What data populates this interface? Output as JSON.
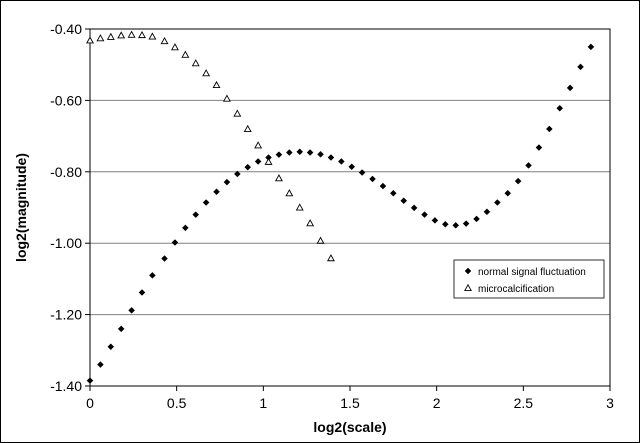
{
  "chart_data": {
    "type": "scatter",
    "xlabel": "log2(scale)",
    "ylabel": "log2(magnitude)",
    "xlim": [
      0,
      3
    ],
    "ylim": [
      -1.4,
      -0.4
    ],
    "x_ticks": [
      "0",
      "0.5",
      "1",
      "1.5",
      "2",
      "2.5",
      "3"
    ],
    "y_ticks": [
      "-0.40",
      "-0.60",
      "-0.80",
      "-1.00",
      "-1.20",
      "-1.40"
    ],
    "grid": "horizontal",
    "legend_position": "right",
    "series": [
      {
        "name": "normal signal fluctuation",
        "marker": "diamond",
        "color": "#000000",
        "points": [
          [
            0.0,
            -1.385
          ],
          [
            0.06,
            -1.34
          ],
          [
            0.12,
            -1.29
          ],
          [
            0.18,
            -1.24
          ],
          [
            0.24,
            -1.188
          ],
          [
            0.3,
            -1.138
          ],
          [
            0.36,
            -1.09
          ],
          [
            0.43,
            -1.043
          ],
          [
            0.49,
            -0.998
          ],
          [
            0.55,
            -0.957
          ],
          [
            0.61,
            -0.92
          ],
          [
            0.67,
            -0.886
          ],
          [
            0.73,
            -0.856
          ],
          [
            0.79,
            -0.829
          ],
          [
            0.85,
            -0.806
          ],
          [
            0.91,
            -0.787
          ],
          [
            0.97,
            -0.771
          ],
          [
            1.03,
            -0.76
          ],
          [
            1.09,
            -0.752
          ],
          [
            1.15,
            -0.746
          ],
          [
            1.21,
            -0.744
          ],
          [
            1.27,
            -0.746
          ],
          [
            1.33,
            -0.751
          ],
          [
            1.39,
            -0.76
          ],
          [
            1.45,
            -0.771
          ],
          [
            1.51,
            -0.786
          ],
          [
            1.57,
            -0.802
          ],
          [
            1.63,
            -0.82
          ],
          [
            1.69,
            -0.84
          ],
          [
            1.75,
            -0.86
          ],
          [
            1.81,
            -0.881
          ],
          [
            1.87,
            -0.901
          ],
          [
            1.93,
            -0.92
          ],
          [
            1.99,
            -0.936
          ],
          [
            2.05,
            -0.947
          ],
          [
            2.11,
            -0.95
          ],
          [
            2.17,
            -0.945
          ],
          [
            2.23,
            -0.932
          ],
          [
            2.29,
            -0.912
          ],
          [
            2.35,
            -0.886
          ],
          [
            2.41,
            -0.86
          ],
          [
            2.47,
            -0.826
          ],
          [
            2.53,
            -0.782
          ],
          [
            2.59,
            -0.732
          ],
          [
            2.65,
            -0.68
          ],
          [
            2.71,
            -0.622
          ],
          [
            2.77,
            -0.565
          ],
          [
            2.83,
            -0.506
          ],
          [
            2.89,
            -0.45
          ]
        ]
      },
      {
        "name": "microcalcification",
        "marker": "triangle",
        "color": "#000000",
        "points": [
          [
            0.0,
            -0.432
          ],
          [
            0.06,
            -0.426
          ],
          [
            0.12,
            -0.422
          ],
          [
            0.18,
            -0.418
          ],
          [
            0.24,
            -0.416
          ],
          [
            0.3,
            -0.417
          ],
          [
            0.36,
            -0.421
          ],
          [
            0.43,
            -0.434
          ],
          [
            0.49,
            -0.451
          ],
          [
            0.55,
            -0.472
          ],
          [
            0.61,
            -0.496
          ],
          [
            0.67,
            -0.524
          ],
          [
            0.73,
            -0.557
          ],
          [
            0.79,
            -0.595
          ],
          [
            0.85,
            -0.637
          ],
          [
            0.91,
            -0.68
          ],
          [
            0.97,
            -0.726
          ],
          [
            1.03,
            -0.772
          ],
          [
            1.09,
            -0.818
          ],
          [
            1.15,
            -0.86
          ],
          [
            1.21,
            -0.9
          ],
          [
            1.27,
            -0.944
          ],
          [
            1.33,
            -0.993
          ],
          [
            1.39,
            -1.042
          ]
        ]
      }
    ]
  }
}
